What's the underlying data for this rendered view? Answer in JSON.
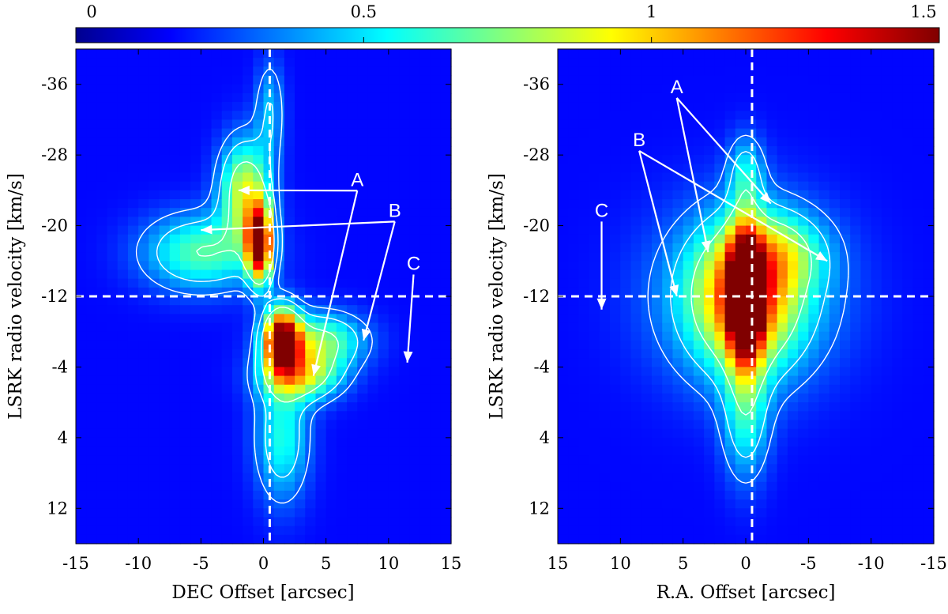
{
  "colorbar": {
    "ticks": [
      {
        "label": "0",
        "value": 0
      },
      {
        "label": "0.5",
        "value": 0.5
      },
      {
        "label": "1",
        "value": 1
      },
      {
        "label": "1.5",
        "value": 1.5
      }
    ],
    "range": [
      0,
      1.5
    ],
    "colormap": "jet"
  },
  "chart_data": [
    {
      "type": "heatmap",
      "xlabel": "DEC Offset [arcsec]",
      "ylabel": "LSRK radio velocity [km/s]",
      "xlim": [
        -15,
        15
      ],
      "ylim": [
        -40,
        16
      ],
      "y_reversed": true,
      "xticks": [
        {
          "value": -15,
          "label": "-15"
        },
        {
          "value": -10,
          "label": "-10"
        },
        {
          "value": -5,
          "label": "-5"
        },
        {
          "value": 0,
          "label": "0"
        },
        {
          "value": 5,
          "label": "5"
        },
        {
          "value": 10,
          "label": "10"
        },
        {
          "value": 15,
          "label": "15"
        }
      ],
      "yticks": [
        {
          "value": -36,
          "label": "-36"
        },
        {
          "value": -28,
          "label": "-28"
        },
        {
          "value": -20,
          "label": "-20"
        },
        {
          "value": -12,
          "label": "-12"
        },
        {
          "value": -4,
          "label": "-4"
        },
        {
          "value": 4,
          "label": "4"
        },
        {
          "value": 12,
          "label": "12"
        }
      ],
      "ref_lines": {
        "x": 0.5,
        "y": -12
      },
      "emission_components": [
        {
          "x": -1.5,
          "v": -24,
          "peak": 0.75,
          "sx": 1.4,
          "sv": 4
        },
        {
          "x": -5,
          "v": -17,
          "peak": 0.55,
          "sx": 3.2,
          "sv": 3
        },
        {
          "x": -0.3,
          "v": -18,
          "peak": 1.45,
          "sx": 0.7,
          "sv": 3
        },
        {
          "x": 1.5,
          "v": -7,
          "peak": 1.45,
          "sx": 1.0,
          "sv": 2.5
        },
        {
          "x": 4.5,
          "v": -7,
          "peak": 0.6,
          "sx": 2.5,
          "sv": 2.2
        },
        {
          "x": 3,
          "v": -3,
          "peak": 0.7,
          "sx": 2.2,
          "sv": 2
        },
        {
          "x": 1.5,
          "v": 4,
          "peak": 0.45,
          "sx": 1.5,
          "sv": 5
        },
        {
          "x": 0.5,
          "v": -33,
          "peak": 0.3,
          "sx": 0.8,
          "sv": 4
        }
      ],
      "annotations": [
        {
          "text": "A",
          "x": 7.5,
          "v": -24.5,
          "arrows_to": [
            [
              -2,
              -24
            ],
            [
              4,
              -3
            ]
          ]
        },
        {
          "text": "B",
          "x": 10.5,
          "v": -21,
          "arrows_to": [
            [
              -5,
              -19.5
            ],
            [
              8,
              -7
            ]
          ]
        },
        {
          "text": "C",
          "x": 12,
          "v": -15,
          "arrows_to": [
            [
              11.5,
              -4.5
            ]
          ]
        }
      ]
    },
    {
      "type": "heatmap",
      "xlabel": "R.A. Offset [arcsec]",
      "ylabel": "LSRK radio velocity [km/s]",
      "xlim": [
        15,
        -15
      ],
      "ylim": [
        -40,
        16
      ],
      "y_reversed": true,
      "xticks": [
        {
          "value": 15,
          "label": "15"
        },
        {
          "value": 10,
          "label": "10"
        },
        {
          "value": 5,
          "label": "5"
        },
        {
          "value": 0,
          "label": "0"
        },
        {
          "value": -5,
          "label": "-5"
        },
        {
          "value": -10,
          "label": "-10"
        },
        {
          "value": -15,
          "label": "-15"
        }
      ],
      "yticks": [
        {
          "value": -36,
          "label": "-36"
        },
        {
          "value": -28,
          "label": "-28"
        },
        {
          "value": -20,
          "label": "-20"
        },
        {
          "value": -12,
          "label": "-12"
        },
        {
          "value": -4,
          "label": "-4"
        },
        {
          "value": 4,
          "label": "4"
        },
        {
          "value": 12,
          "label": "12"
        }
      ],
      "ref_lines": {
        "x": -0.5,
        "y": -12
      },
      "emission_components": [
        {
          "x": 0,
          "v": -12,
          "peak": 1.5,
          "sx": 0.9,
          "sv": 5
        },
        {
          "x": 0,
          "v": -12,
          "peak": 0.8,
          "sx": 2.8,
          "sv": 5.5
        },
        {
          "x": 0,
          "v": -12,
          "peak": 0.45,
          "sx": 5,
          "sv": 7
        },
        {
          "x": -3,
          "v": -17,
          "peak": 0.35,
          "sx": 2.5,
          "sv": 3
        },
        {
          "x": 0,
          "v": -26,
          "peak": 0.35,
          "sx": 1,
          "sv": 3
        },
        {
          "x": 0,
          "v": 2,
          "peak": 0.4,
          "sx": 1.3,
          "sv": 5
        }
      ],
      "annotations": [
        {
          "text": "A",
          "x": 5.5,
          "v": -35,
          "arrows_to": [
            [
              3,
              -17
            ],
            [
              -2,
              -22.5
            ]
          ]
        },
        {
          "text": "B",
          "x": 8.5,
          "v": -29,
          "arrows_to": [
            [
              5.5,
              -12
            ],
            [
              -6.5,
              -16
            ]
          ]
        },
        {
          "text": "C",
          "x": 11.5,
          "v": -21,
          "arrows_to": [
            [
              11.5,
              -10.5
            ]
          ]
        }
      ]
    }
  ]
}
